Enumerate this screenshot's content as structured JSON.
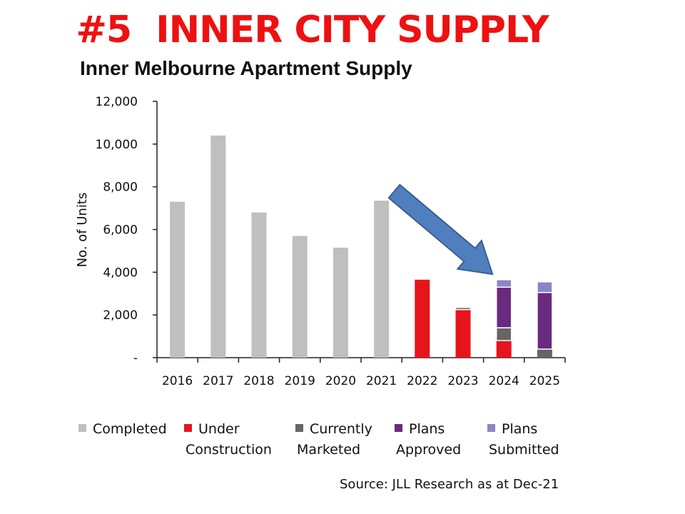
{
  "headline": "#5  INNER CITY SUPPLY",
  "source": "Source: JLL Research as at Dec-21",
  "chart_data": {
    "type": "bar",
    "stacked": true,
    "title": "Inner Melbourne Apartment Supply",
    "xlabel": "",
    "ylabel": "No. of Units",
    "ylim": [
      0,
      12000
    ],
    "yticks": [
      0,
      2000,
      4000,
      6000,
      8000,
      10000,
      12000
    ],
    "ytick_labels": [
      "-",
      "2,000",
      "4,000",
      "6,000",
      "8,000",
      "10,000",
      "12,000"
    ],
    "categories": [
      "2016",
      "2017",
      "2018",
      "2019",
      "2020",
      "2021",
      "2022",
      "2023",
      "2024",
      "2025"
    ],
    "series": [
      {
        "name": "Completed",
        "color": "#bfbfbf",
        "values": [
          7300,
          10400,
          6800,
          5700,
          5150,
          7350,
          0,
          0,
          0,
          0
        ]
      },
      {
        "name": "Under Construction",
        "color": "#e8141c",
        "values": [
          0,
          0,
          0,
          0,
          0,
          0,
          3650,
          2250,
          800,
          0
        ]
      },
      {
        "name": "Currently Marketed",
        "color": "#666666",
        "values": [
          0,
          0,
          0,
          0,
          0,
          0,
          0,
          100,
          600,
          400
        ]
      },
      {
        "name": "Plans Approved",
        "color": "#6a2a7f",
        "values": [
          0,
          0,
          0,
          0,
          0,
          0,
          0,
          0,
          1900,
          2650
        ]
      },
      {
        "name": "Plans Submitted",
        "color": "#8a86c8",
        "values": [
          0,
          0,
          0,
          0,
          0,
          0,
          0,
          0,
          350,
          500
        ]
      }
    ],
    "legend": {
      "placement": "bottom",
      "entries": [
        [
          "Completed"
        ],
        [
          "Under",
          "Construction"
        ],
        [
          "Currently",
          "Marketed"
        ],
        [
          "Plans",
          "Approved"
        ],
        [
          "Plans",
          "Submitted"
        ]
      ]
    },
    "annotation": {
      "type": "arrow",
      "color": "#4f7fbf",
      "from": "2021",
      "to": "2024"
    }
  }
}
